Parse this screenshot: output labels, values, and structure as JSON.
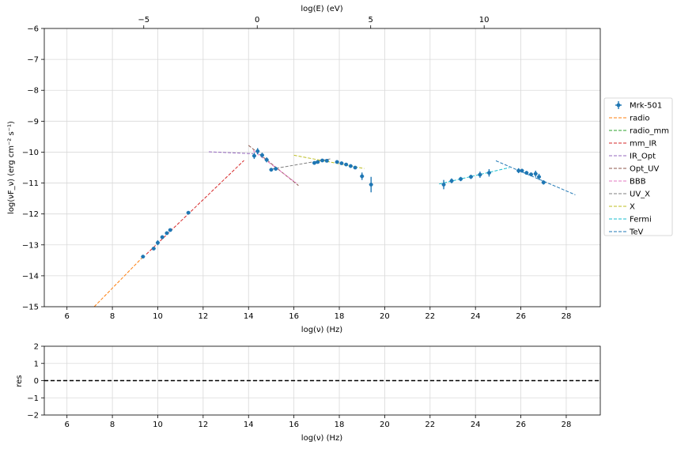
{
  "chart_data": [
    {
      "type": "scatter",
      "role": "sed",
      "top_axis_label": "log(E) (eV)",
      "top_ticks": [
        -5,
        0,
        5,
        10
      ],
      "xlabel": "log(ν)  (Hz)",
      "ylabel": "log(νF_ν)  (erg cm⁻²  s⁻¹)",
      "xlim": [
        5,
        29.5
      ],
      "ylim": [
        -15,
        -6
      ],
      "xticks": [
        6,
        8,
        10,
        12,
        14,
        16,
        18,
        20,
        22,
        24,
        26,
        28
      ],
      "yticks": [
        -15,
        -14,
        -13,
        -12,
        -11,
        -10,
        -9,
        -8,
        -7,
        -6
      ],
      "grid": true,
      "legend_position": "right",
      "data_series": {
        "name": "Mrk-501",
        "color": "#1f77b4",
        "points": [
          [
            9.35,
            -13.38,
            0.05
          ],
          [
            9.82,
            -13.12,
            0.05
          ],
          [
            10.0,
            -12.93,
            0.08
          ],
          [
            10.2,
            -12.75,
            0.06
          ],
          [
            10.4,
            -12.62,
            0.05
          ],
          [
            10.55,
            -12.52,
            0.05
          ],
          [
            11.35,
            -11.96,
            0.05
          ],
          [
            14.25,
            -10.12,
            0.1
          ],
          [
            14.4,
            -9.97,
            0.1
          ],
          [
            14.6,
            -10.1,
            0.08
          ],
          [
            14.8,
            -10.25,
            0.08
          ],
          [
            15.0,
            -10.57,
            0.06
          ],
          [
            15.2,
            -10.54,
            0.05
          ],
          [
            16.9,
            -10.35,
            0.06
          ],
          [
            17.05,
            -10.32,
            0.05
          ],
          [
            17.25,
            -10.27,
            0.05
          ],
          [
            17.45,
            -10.28,
            0.05
          ],
          [
            17.9,
            -10.32,
            0.05
          ],
          [
            18.1,
            -10.36,
            0.05
          ],
          [
            18.3,
            -10.4,
            0.05
          ],
          [
            18.5,
            -10.45,
            0.05
          ],
          [
            18.7,
            -10.5,
            0.05
          ],
          [
            19.0,
            -10.78,
            0.12
          ],
          [
            19.4,
            -11.05,
            0.25
          ],
          [
            22.6,
            -11.05,
            0.15
          ],
          [
            22.95,
            -10.93,
            0.08
          ],
          [
            23.35,
            -10.87,
            0.07
          ],
          [
            23.8,
            -10.8,
            0.07
          ],
          [
            24.2,
            -10.73,
            0.1
          ],
          [
            24.6,
            -10.67,
            0.12
          ],
          [
            25.9,
            -10.6,
            0.08
          ],
          [
            26.05,
            -10.6,
            0.06
          ],
          [
            26.25,
            -10.67,
            0.06
          ],
          [
            26.45,
            -10.72,
            0.06
          ],
          [
            26.65,
            -10.7,
            0.1
          ],
          [
            26.8,
            -10.8,
            0.1
          ],
          [
            27.0,
            -10.98,
            0.07
          ]
        ]
      },
      "series": [
        {
          "name": "radio",
          "color": "#ff7f0e",
          "line": [
            [
              7.2,
              -15.0
            ],
            [
              9.4,
              -13.35
            ]
          ]
        },
        {
          "name": "radio_mm",
          "color": "#2ca02c",
          "line": []
        },
        {
          "name": "mm_IR",
          "color": "#d62728",
          "line": [
            [
              9.5,
              -13.3
            ],
            [
              13.8,
              -10.27
            ]
          ]
        },
        {
          "name": "IR_Opt",
          "color": "#9467bd",
          "line": [
            [
              12.25,
              -9.99
            ],
            [
              14.2,
              -10.05
            ]
          ]
        },
        {
          "name": "Opt_UV",
          "color": "#8c564b",
          "line": [
            [
              14.0,
              -9.78
            ],
            [
              16.2,
              -11.08
            ]
          ]
        },
        {
          "name": "BBB",
          "color": "#e377c2",
          "line": [
            [
              14.2,
              -9.95
            ],
            [
              16.1,
              -11.0
            ]
          ]
        },
        {
          "name": "UV_X",
          "color": "#7f7f7f",
          "line": [
            [
              15.0,
              -10.55
            ],
            [
              17.6,
              -10.22
            ]
          ]
        },
        {
          "name": "X",
          "color": "#bcbd22",
          "line": [
            [
              16.0,
              -10.1
            ],
            [
              19.1,
              -10.53
            ]
          ]
        },
        {
          "name": "Fermi",
          "color": "#17becf",
          "line": [
            [
              22.4,
              -11.03
            ],
            [
              25.5,
              -10.5
            ]
          ]
        },
        {
          "name": "TeV",
          "color": "#1f77b4",
          "line": [
            [
              24.9,
              -10.28
            ],
            [
              28.4,
              -11.38
            ]
          ]
        }
      ]
    },
    {
      "type": "line",
      "role": "residuals",
      "xlabel": "log(ν)  (Hz)",
      "ylabel": "res",
      "xlim": [
        5,
        29.5
      ],
      "ylim": [
        -2,
        2
      ],
      "xticks": [
        6,
        8,
        10,
        12,
        14,
        16,
        18,
        20,
        22,
        24,
        26,
        28
      ],
      "yticks": [
        -2,
        -1,
        0,
        1,
        2
      ],
      "reference_line": 0,
      "grid": true
    }
  ]
}
